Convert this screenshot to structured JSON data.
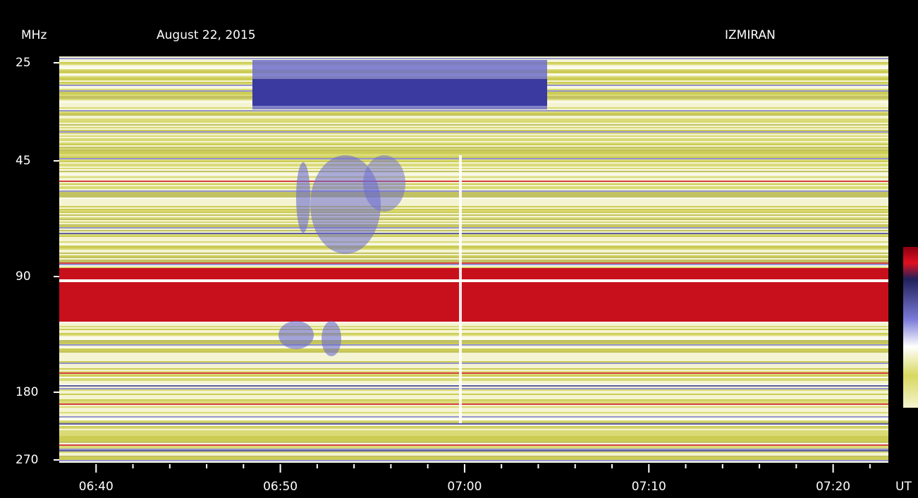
{
  "chart_data": {
    "type": "spectrogram",
    "title": "August 22, 2015",
    "observatory": "IZMIRAN",
    "ylabel": "MHz",
    "xlabel": "UT",
    "ylim": [
      25,
      270
    ],
    "yscale": "log",
    "yticks": [
      25,
      45,
      90,
      180,
      270
    ],
    "xlim": [
      "06:38",
      "07:23"
    ],
    "xticks": [
      "06:40",
      "06:50",
      "07:00",
      "07:10",
      "07:20"
    ]
  }
}
